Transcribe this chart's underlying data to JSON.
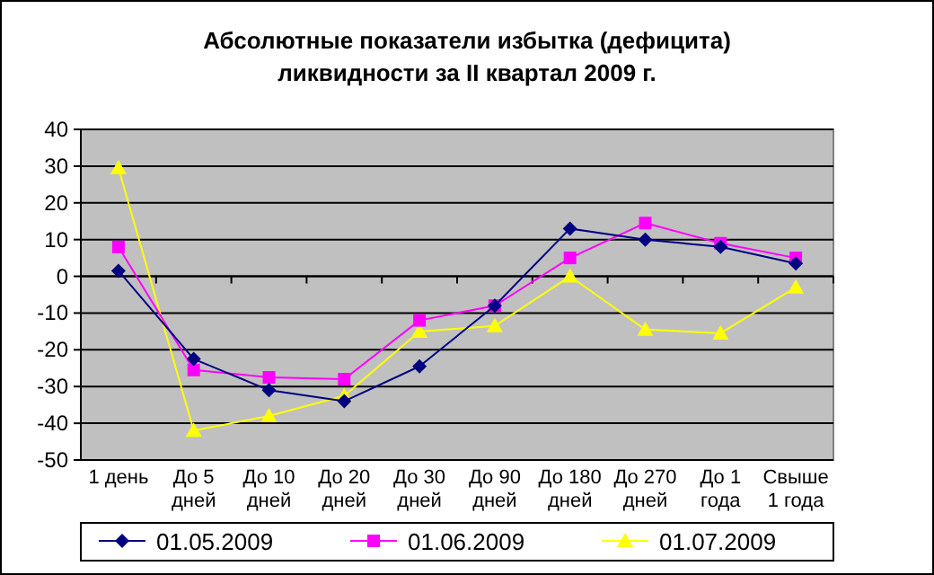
{
  "chart_data": {
    "type": "line",
    "title": "Абсолютные показатели избытка (дефицита) ликвидности за II квартал 2009 г.",
    "categories": [
      "1 день",
      "До 5 дней",
      "До 10 дней",
      "До 20 дней",
      "До 30 дней",
      "До 90 дней",
      "До 180 дней",
      "До 270 дней",
      "До 1 года",
      "Свыше 1 года"
    ],
    "series": [
      {
        "name": "01.05.2009",
        "color": "#000080",
        "marker": "diamond",
        "values": [
          1.5,
          -22.5,
          -31,
          -34,
          -24.5,
          -8,
          13,
          10,
          8,
          3.5
        ]
      },
      {
        "name": "01.06.2009",
        "color": "#ff00ff",
        "marker": "square",
        "values": [
          8,
          -25.5,
          -27.5,
          -28,
          -12,
          -8,
          5,
          14.5,
          9,
          5
        ]
      },
      {
        "name": "01.07.2009",
        "color": "#ffff00",
        "marker": "triangle",
        "values": [
          29.5,
          -42,
          -38,
          -32.5,
          -15,
          -13.5,
          0,
          -14.5,
          -15.5,
          -3
        ]
      }
    ],
    "ylim": [
      -50,
      40
    ],
    "yticks": [
      -50,
      -40,
      -30,
      -20,
      -10,
      0,
      10,
      20,
      30,
      40
    ],
    "grid": "y",
    "legend": "bottom"
  }
}
